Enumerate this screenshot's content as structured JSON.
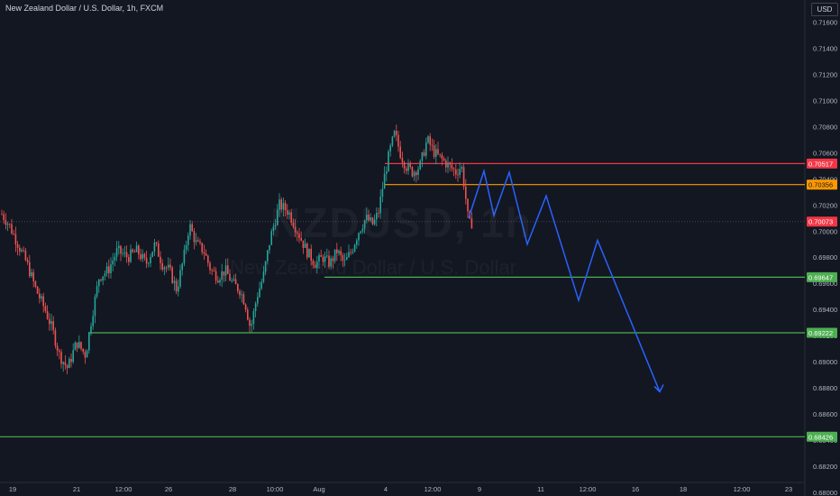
{
  "title": "New Zealand Dollar / U.S. Dollar, 1h, FXCM",
  "watermark": {
    "symbol": "NZDUSD, 1h",
    "name": "New Zealand Dollar / U.S. Dollar"
  },
  "currency_unit": "USD",
  "colors": {
    "background": "#131722",
    "up_candle": "#26a69a",
    "down_candle": "#ef5350",
    "support": "#4caf50",
    "resistance_red": "#f23645",
    "resistance_orange": "#ff9800",
    "projection": "#2962ff",
    "axis_text": "#b2b5be",
    "last_price": "#f23645"
  },
  "chart_data": {
    "type": "candlestick",
    "interval": "1h",
    "ylim": [
      0.68,
      0.717
    ],
    "y_ticks": [
      "0.71600",
      "0.71400",
      "0.71200",
      "0.71000",
      "0.70800",
      "0.70600",
      "0.70400",
      "0.70200",
      "0.70000",
      "0.69800",
      "0.69600",
      "0.69400",
      "0.69200",
      "0.69000",
      "0.68800",
      "0.68600",
      "0.68400",
      "0.68200",
      "0.68000"
    ],
    "x_ticks": [
      "19",
      "21",
      "12:00",
      "26",
      "28",
      "10:00",
      "Aug",
      "4",
      "12:00",
      "9",
      "11",
      "12:00",
      "16",
      "18",
      "12:00",
      "23"
    ],
    "horizontal_levels": [
      {
        "value": 0.70517,
        "label": "0.70517",
        "type": "resistance_red"
      },
      {
        "value": 0.70356,
        "label": "0.70356",
        "type": "resistance_orange"
      },
      {
        "value": 0.69647,
        "label": "0.69647",
        "type": "support"
      },
      {
        "value": 0.69222,
        "label": "0.69222",
        "type": "support"
      },
      {
        "value": 0.68426,
        "label": "0.68426",
        "type": "support"
      }
    ],
    "last_price": {
      "value": 0.70073,
      "label": "0.70073"
    },
    "price_path": [
      [
        0,
        0.7015
      ],
      [
        10,
        0.7005
      ],
      [
        20,
        0.699
      ],
      [
        30,
        0.6975
      ],
      [
        40,
        0.6955
      ],
      [
        50,
        0.694
      ],
      [
        58,
        0.6925
      ],
      [
        66,
        0.6905
      ],
      [
        75,
        0.6895
      ],
      [
        85,
        0.6915
      ],
      [
        95,
        0.6905
      ],
      [
        102,
        0.6935
      ],
      [
        110,
        0.6965
      ],
      [
        120,
        0.697
      ],
      [
        130,
        0.6985
      ],
      [
        142,
        0.698
      ],
      [
        152,
        0.6985
      ],
      [
        162,
        0.6975
      ],
      [
        172,
        0.699
      ],
      [
        180,
        0.6975
      ],
      [
        188,
        0.697
      ],
      [
        196,
        0.6955
      ],
      [
        204,
        0.698
      ],
      [
        210,
        0.7005
      ],
      [
        218,
        0.699
      ],
      [
        226,
        0.6985
      ],
      [
        234,
        0.697
      ],
      [
        242,
        0.6965
      ],
      [
        250,
        0.697
      ],
      [
        258,
        0.696
      ],
      [
        266,
        0.6955
      ],
      [
        272,
        0.6945
      ],
      [
        278,
        0.6925
      ],
      [
        285,
        0.695
      ],
      [
        292,
        0.6965
      ],
      [
        300,
        0.6995
      ],
      [
        310,
        0.702
      ],
      [
        320,
        0.7015
      ],
      [
        330,
        0.7
      ],
      [
        340,
        0.6985
      ],
      [
        350,
        0.6975
      ],
      [
        358,
        0.698
      ],
      [
        366,
        0.6975
      ],
      [
        374,
        0.6985
      ],
      [
        382,
        0.6975
      ],
      [
        390,
        0.6985
      ],
      [
        398,
        0.7
      ],
      [
        406,
        0.701
      ],
      [
        414,
        0.7005
      ],
      [
        420,
        0.7015
      ],
      [
        426,
        0.704
      ],
      [
        432,
        0.706
      ],
      [
        438,
        0.7075
      ],
      [
        444,
        0.706
      ],
      [
        450,
        0.705
      ],
      [
        458,
        0.7045
      ],
      [
        466,
        0.705
      ],
      [
        474,
        0.707
      ],
      [
        482,
        0.706
      ],
      [
        490,
        0.7055
      ],
      [
        498,
        0.705
      ],
      [
        506,
        0.7045
      ],
      [
        512,
        0.705
      ],
      [
        516,
        0.703
      ],
      [
        520,
        0.7005
      ],
      [
        525,
        0.7007
      ]
    ],
    "projection_path": [
      [
        520,
        0.701
      ],
      [
        537,
        0.7046
      ],
      [
        548,
        0.7012
      ],
      [
        565,
        0.7045
      ],
      [
        585,
        0.699
      ],
      [
        606,
        0.7027
      ],
      [
        642,
        0.6947
      ],
      [
        663,
        0.6993
      ],
      [
        732,
        0.6877
      ]
    ]
  }
}
